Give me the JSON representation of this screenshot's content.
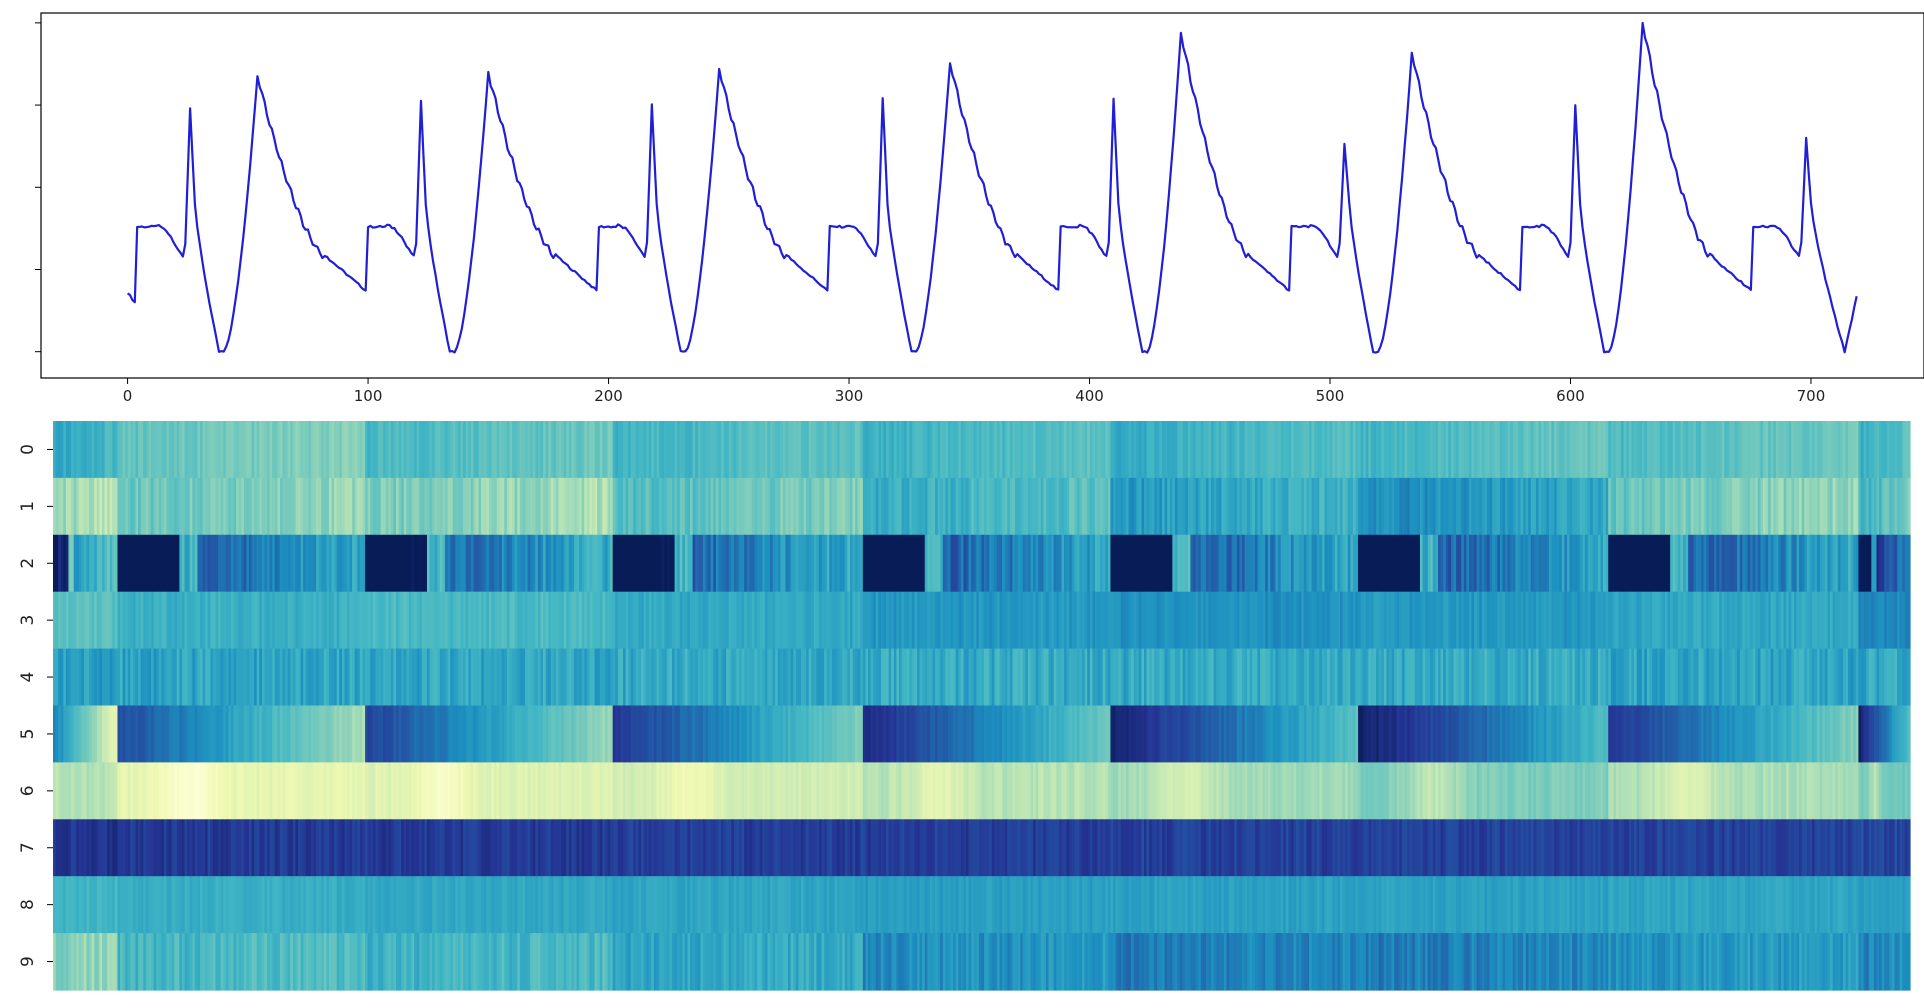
{
  "chart_data": [
    {
      "type": "line",
      "title": "",
      "xlabel": "",
      "ylabel": "",
      "xlim": [
        -36,
        747
      ],
      "ylim": [
        -0.08,
        1.03
      ],
      "x_ticks": [
        "0",
        "100",
        "200",
        "300",
        "400",
        "500",
        "600",
        "700"
      ],
      "y_ticks_labeled": false,
      "grid": false,
      "color": "#1f1fd6",
      "n_points": 720,
      "cycle_starts": [
        4,
        100,
        196,
        292,
        388,
        484,
        580,
        676
      ],
      "cycle_amplitudes": [
        0.84,
        0.85,
        0.86,
        0.88,
        0.97,
        0.91,
        1.0
      ],
      "r_peak_heights": [
        0.74,
        0.76,
        0.75,
        0.77,
        0.77,
        0.63,
        0.75,
        0.65
      ],
      "baseline": 0.18,
      "minimum": 0.0,
      "end_value": 0.2
    },
    {
      "type": "heatmap",
      "title": "",
      "xlabel": "",
      "ylabel": "",
      "row_labels": [
        "0",
        "1",
        "2",
        "3",
        "4",
        "5",
        "6",
        "7",
        "8",
        "9"
      ],
      "n_columns": 720,
      "segment_boundaries": [
        0,
        25,
        121,
        217,
        314,
        410,
        506,
        603,
        700,
        720
      ],
      "colormap": "YlGnBu",
      "color_range": [
        0,
        1
      ],
      "row_levels": [
        [
          0.52,
          0.4,
          0.45,
          0.47,
          0.48,
          0.5,
          0.46,
          0.44,
          0.48
        ],
        [
          0.3,
          0.38,
          0.35,
          0.42,
          0.49,
          0.55,
          0.6,
          0.38,
          0.45
        ],
        [
          0.55,
          0.7,
          0.68,
          0.68,
          0.7,
          0.7,
          0.7,
          0.7,
          0.8
        ],
        [
          0.45,
          0.52,
          0.48,
          0.55,
          0.6,
          0.62,
          0.6,
          0.55,
          0.65
        ],
        [
          0.58,
          0.56,
          0.55,
          0.54,
          0.54,
          0.54,
          0.54,
          0.56,
          0.55
        ],
        [
          0.4,
          0.55,
          0.58,
          0.62,
          0.66,
          0.7,
          0.72,
          0.62,
          0.7
        ],
        [
          0.28,
          0.15,
          0.18,
          0.22,
          0.28,
          0.32,
          0.38,
          0.3,
          0.4
        ],
        [
          0.88,
          0.86,
          0.86,
          0.85,
          0.85,
          0.84,
          0.84,
          0.84,
          0.82
        ],
        [
          0.5,
          0.53,
          0.55,
          0.56,
          0.58,
          0.57,
          0.57,
          0.56,
          0.58
        ],
        [
          0.35,
          0.48,
          0.5,
          0.55,
          0.62,
          0.66,
          0.66,
          0.6,
          0.64
        ]
      ],
      "row_within_segment_trend": [
        -0.04,
        -0.05,
        -0.15,
        0.0,
        0.0,
        -0.25,
        0.0,
        0.0,
        0.0,
        -0.02
      ],
      "row_texture": [
        0.04,
        0.06,
        0.08,
        0.04,
        0.07,
        0.03,
        0.03,
        0.05,
        0.03,
        0.06
      ]
    }
  ]
}
